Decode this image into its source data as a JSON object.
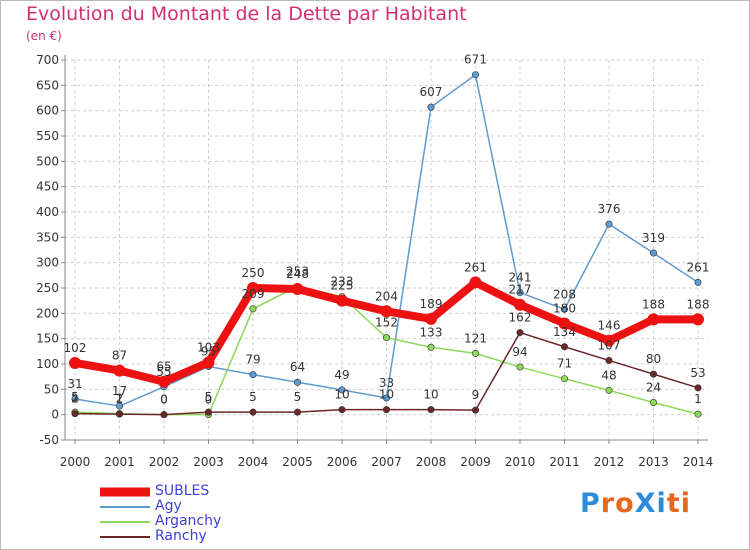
{
  "title": "Evolution du Montant de la Dette par Habitant",
  "subtitle": "(en €)",
  "logo": {
    "text": "ProXiti",
    "colors": [
      "#2e8bd8",
      "#e8671e",
      "#e8671e",
      "#2e8bd8",
      "#2e8bd8",
      "#e8671e",
      "#e8671e"
    ]
  },
  "chart_data": {
    "type": "line",
    "categories": [
      "2000",
      "2001",
      "2002",
      "2003",
      "2004",
      "2005",
      "2006",
      "2007",
      "2008",
      "2009",
      "2010",
      "2011",
      "2012",
      "2013",
      "2014"
    ],
    "ylim": [
      -50,
      700
    ],
    "yticks": [
      -50,
      0,
      50,
      100,
      150,
      200,
      250,
      300,
      350,
      400,
      450,
      500,
      550,
      600,
      650,
      700
    ],
    "grid": true,
    "legend_position": "bottom-left",
    "series": [
      {
        "name": "Agy",
        "color": "#5d9bd1",
        "values": [
          31,
          17,
          55,
          95,
          79,
          64,
          49,
          33,
          607,
          671,
          241,
          208,
          376,
          319,
          261
        ]
      },
      {
        "name": "Arganchy",
        "color": "#8ed85a",
        "values": [
          5,
          2,
          0,
          0,
          209,
          253,
          233,
          152,
          133,
          121,
          94,
          71,
          48,
          24,
          1
        ]
      },
      {
        "name": "Ranchy",
        "color": "#6b2828",
        "values": [
          2,
          1,
          0,
          5,
          5,
          5,
          10,
          10,
          10,
          9,
          162,
          134,
          107,
          80,
          53
        ]
      },
      {
        "name": "SUBLES",
        "color": "#ee1111",
        "values": [
          102,
          87,
          65,
          103,
          250,
          248,
          225,
          204,
          189,
          261,
          217,
          180,
          146,
          188,
          188
        ]
      }
    ],
    "data_labels": {
      "Agy": [
        "31",
        "17",
        "55",
        "95",
        "79",
        "64",
        "49",
        "33",
        "607",
        "671",
        "241",
        "208",
        "376",
        "319",
        "261"
      ],
      "Arganchy": [
        "5",
        "2",
        "0",
        "0",
        "209",
        "253",
        "233",
        "152",
        "133",
        "121",
        "94",
        "71",
        "48",
        "24",
        "1"
      ],
      "Ranchy": [
        "2",
        "1",
        "0",
        "5",
        "5",
        "5",
        "10",
        "10",
        "10",
        "9",
        "162",
        "134",
        "107",
        "80",
        "53"
      ],
      "SUBLES": [
        "102",
        "87",
        "65",
        "103",
        "250",
        "248",
        "225",
        "204",
        "189",
        "261",
        "217",
        "180",
        "146",
        "188",
        "188"
      ]
    }
  },
  "legend": [
    {
      "label": "SUBLES",
      "color": "#ee1111"
    },
    {
      "label": "Agy",
      "color": "#5d9bd1"
    },
    {
      "label": "Arganchy",
      "color": "#8ed85a"
    },
    {
      "label": "Ranchy",
      "color": "#6b2828"
    }
  ]
}
